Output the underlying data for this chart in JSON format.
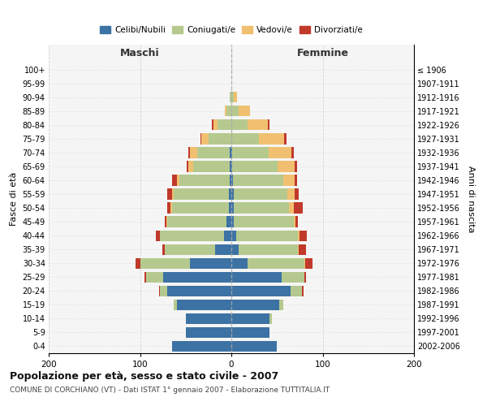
{
  "age_groups": [
    "0-4",
    "5-9",
    "10-14",
    "15-19",
    "20-24",
    "25-29",
    "30-34",
    "35-39",
    "40-44",
    "45-49",
    "50-54",
    "55-59",
    "60-64",
    "65-69",
    "70-74",
    "75-79",
    "80-84",
    "85-89",
    "90-94",
    "95-99",
    "100+"
  ],
  "birth_years": [
    "2002-2006",
    "1997-2001",
    "1992-1996",
    "1987-1991",
    "1982-1986",
    "1977-1981",
    "1972-1976",
    "1967-1971",
    "1962-1966",
    "1957-1961",
    "1952-1956",
    "1947-1951",
    "1942-1946",
    "1937-1941",
    "1932-1936",
    "1927-1931",
    "1922-1926",
    "1917-1921",
    "1912-1916",
    "1907-1911",
    "≤ 1906"
  ],
  "males": {
    "celibi": [
      65,
      50,
      50,
      60,
      70,
      75,
      45,
      18,
      8,
      5,
      3,
      3,
      2,
      2,
      2,
      0,
      0,
      0,
      0,
      0,
      0
    ],
    "coniugati": [
      0,
      0,
      0,
      3,
      8,
      18,
      55,
      55,
      70,
      65,
      62,
      60,
      55,
      40,
      35,
      25,
      15,
      5,
      2,
      0,
      0
    ],
    "vedovi": [
      0,
      0,
      0,
      0,
      0,
      0,
      0,
      0,
      0,
      1,
      2,
      2,
      3,
      5,
      8,
      8,
      5,
      2,
      0,
      0,
      0
    ],
    "divorziati": [
      0,
      0,
      0,
      0,
      1,
      2,
      5,
      3,
      5,
      2,
      3,
      5,
      5,
      2,
      2,
      1,
      1,
      0,
      0,
      0,
      0
    ]
  },
  "females": {
    "nubili": [
      50,
      42,
      42,
      52,
      65,
      55,
      18,
      8,
      5,
      3,
      3,
      3,
      2,
      1,
      1,
      0,
      0,
      0,
      0,
      0,
      0
    ],
    "coniugate": [
      0,
      0,
      2,
      5,
      12,
      25,
      62,
      65,
      68,
      65,
      60,
      58,
      55,
      50,
      40,
      30,
      18,
      8,
      3,
      0,
      0
    ],
    "vedove": [
      0,
      0,
      0,
      0,
      0,
      0,
      1,
      1,
      2,
      2,
      5,
      8,
      12,
      18,
      25,
      28,
      22,
      12,
      3,
      0,
      0
    ],
    "divorziate": [
      0,
      0,
      0,
      0,
      2,
      2,
      8,
      8,
      8,
      3,
      10,
      5,
      3,
      3,
      2,
      2,
      2,
      0,
      0,
      0,
      0
    ]
  },
  "colors": {
    "celibi": "#3d72a4",
    "coniugati": "#b5c98e",
    "vedovi": "#f0c070",
    "divorziati": "#c0392b"
  },
  "xlim": 200,
  "title": "Popolazione per età, sesso e stato civile - 2007",
  "subtitle": "COMUNE DI CORCHIANO (VT) - Dati ISTAT 1° gennaio 2007 - Elaborazione TUTTITALIA.IT",
  "ylabel_left": "Fasce di età",
  "ylabel_right": "Anni di nascita",
  "label_maschi": "Maschi",
  "label_femmine": "Femmine",
  "bg_color": "#f5f5f5",
  "grid_color": "#cccccc"
}
